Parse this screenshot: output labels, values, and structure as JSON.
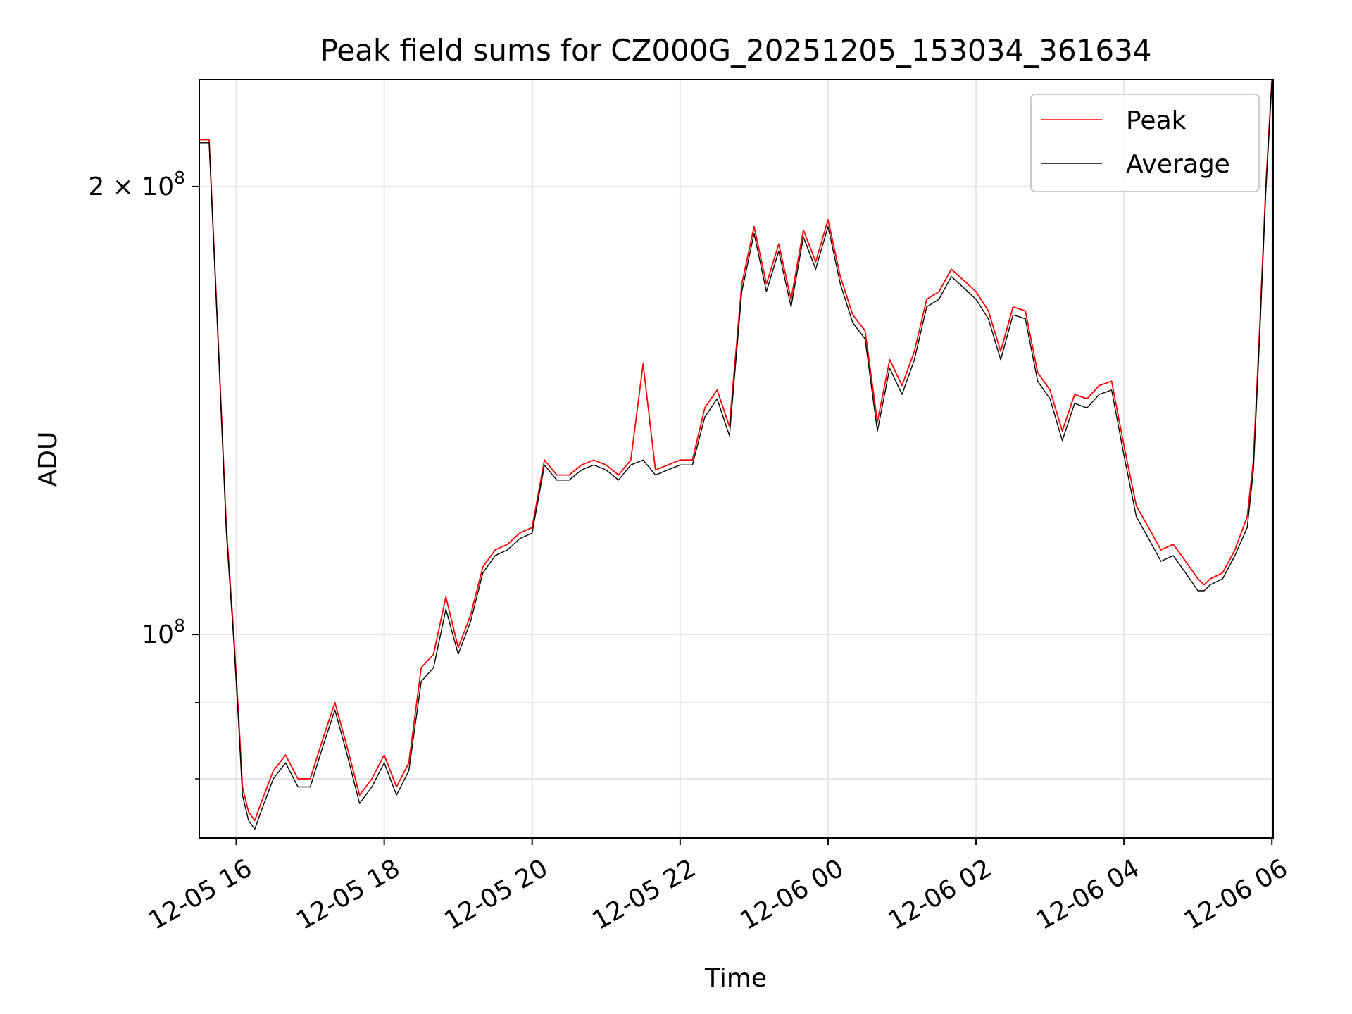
{
  "chart_data": {
    "type": "line",
    "title": "Peak field sums for CZ000G_20251205_153034_361634",
    "xlabel": "Time",
    "ylabel": "ADU",
    "yscale": "log",
    "xlim": [
      "2025-12-05 15:30",
      "2025-12-06 06:01"
    ],
    "ylim": [
      73000000,
      236000000
    ],
    "grid": true,
    "legend_position": "upper right",
    "x_ticks": [
      "2025-12-05 16:00",
      "2025-12-05 18:00",
      "2025-12-05 20:00",
      "2025-12-05 22:00",
      "2025-12-06 00:00",
      "2025-12-06 02:00",
      "2025-12-06 04:00",
      "2025-12-06 06:00"
    ],
    "x_tick_labels": [
      "12-05 16",
      "12-05 18",
      "12-05 20",
      "12-05 22",
      "12-06 00",
      "12-06 02",
      "12-06 04",
      "12-06 06"
    ],
    "y_tick_labels": [
      {
        "value": 100000000,
        "base": "10",
        "exp": "8",
        "prefix": ""
      },
      {
        "value": 200000000,
        "base": "10",
        "exp": "8",
        "prefix": "2 × "
      }
    ],
    "y_minor_ticks": [
      80000000,
      90000000
    ],
    "series": [
      {
        "name": "Peak",
        "color": "#ff0000",
        "x": [
          "2025-12-05 15:30",
          "2025-12-05 15:38",
          "2025-12-05 15:45",
          "2025-12-05 15:52",
          "2025-12-05 15:58",
          "2025-12-05 16:02",
          "2025-12-05 16:05",
          "2025-12-05 16:10",
          "2025-12-05 16:15",
          "2025-12-05 16:20",
          "2025-12-05 16:30",
          "2025-12-05 16:40",
          "2025-12-05 16:50",
          "2025-12-05 17:00",
          "2025-12-05 17:10",
          "2025-12-05 17:20",
          "2025-12-05 17:30",
          "2025-12-05 17:40",
          "2025-12-05 17:50",
          "2025-12-05 18:00",
          "2025-12-05 18:10",
          "2025-12-05 18:20",
          "2025-12-05 18:30",
          "2025-12-05 18:40",
          "2025-12-05 18:50",
          "2025-12-05 19:00",
          "2025-12-05 19:10",
          "2025-12-05 19:20",
          "2025-12-05 19:30",
          "2025-12-05 19:40",
          "2025-12-05 19:50",
          "2025-12-05 20:00",
          "2025-12-05 20:10",
          "2025-12-05 20:20",
          "2025-12-05 20:30",
          "2025-12-05 20:40",
          "2025-12-05 20:50",
          "2025-12-05 21:00",
          "2025-12-05 21:10",
          "2025-12-05 21:20",
          "2025-12-05 21:30",
          "2025-12-05 21:40",
          "2025-12-05 21:50",
          "2025-12-05 22:00",
          "2025-12-05 22:10",
          "2025-12-05 22:20",
          "2025-12-05 22:30",
          "2025-12-05 22:40",
          "2025-12-05 22:50",
          "2025-12-05 23:00",
          "2025-12-05 23:10",
          "2025-12-05 23:20",
          "2025-12-05 23:30",
          "2025-12-05 23:40",
          "2025-12-05 23:50",
          "2025-12-06 00:00",
          "2025-12-06 00:10",
          "2025-12-06 00:20",
          "2025-12-06 00:30",
          "2025-12-06 00:40",
          "2025-12-06 00:50",
          "2025-12-06 01:00",
          "2025-12-06 01:10",
          "2025-12-06 01:20",
          "2025-12-06 01:30",
          "2025-12-06 01:40",
          "2025-12-06 01:50",
          "2025-12-06 02:00",
          "2025-12-06 02:10",
          "2025-12-06 02:20",
          "2025-12-06 02:30",
          "2025-12-06 02:40",
          "2025-12-06 02:50",
          "2025-12-06 03:00",
          "2025-12-06 03:10",
          "2025-12-06 03:20",
          "2025-12-06 03:30",
          "2025-12-06 03:40",
          "2025-12-06 03:50",
          "2025-12-06 04:00",
          "2025-12-06 04:10",
          "2025-12-06 04:20",
          "2025-12-06 04:30",
          "2025-12-06 04:40",
          "2025-12-06 04:50",
          "2025-12-06 05:00",
          "2025-12-06 05:05",
          "2025-12-06 05:10",
          "2025-12-06 05:20",
          "2025-12-06 05:30",
          "2025-12-06 05:40",
          "2025-12-06 05:45",
          "2025-12-06 05:50",
          "2025-12-06 05:55",
          "2025-12-06 06:00"
        ],
        "values": [
          215000000,
          215000000,
          160000000,
          118000000,
          100000000,
          88000000,
          79000000,
          76000000,
          75000000,
          77000000,
          81000000,
          83000000,
          80000000,
          80000000,
          85000000,
          90000000,
          84000000,
          78000000,
          80000000,
          83000000,
          79000000,
          82000000,
          95000000,
          97000000,
          106000000,
          98000000,
          103000000,
          111000000,
          114000000,
          115000000,
          117000000,
          118000000,
          131000000,
          128000000,
          128000000,
          130000000,
          131000000,
          130000000,
          128000000,
          131000000,
          152000000,
          129000000,
          130000000,
          131000000,
          131000000,
          142000000,
          146000000,
          138000000,
          172000000,
          188000000,
          172000000,
          183000000,
          168000000,
          187000000,
          178000000,
          190000000,
          174000000,
          164000000,
          160000000,
          139000000,
          153000000,
          147000000,
          155000000,
          168000000,
          170000000,
          176000000,
          173000000,
          170000000,
          165000000,
          155000000,
          166000000,
          165000000,
          150000000,
          146000000,
          137000000,
          145000000,
          144000000,
          147000000,
          148000000,
          134000000,
          122000000,
          118000000,
          114000000,
          115000000,
          112000000,
          109000000,
          108000000,
          109000000,
          110000000,
          114000000,
          120000000,
          131000000,
          160000000,
          200000000,
          236000000
        ]
      },
      {
        "name": "Average",
        "color": "#000000",
        "x": [
          "2025-12-05 15:30",
          "2025-12-05 15:38",
          "2025-12-05 15:45",
          "2025-12-05 15:52",
          "2025-12-05 15:58",
          "2025-12-05 16:02",
          "2025-12-05 16:05",
          "2025-12-05 16:10",
          "2025-12-05 16:15",
          "2025-12-05 16:20",
          "2025-12-05 16:30",
          "2025-12-05 16:40",
          "2025-12-05 16:50",
          "2025-12-05 17:00",
          "2025-12-05 17:10",
          "2025-12-05 17:20",
          "2025-12-05 17:30",
          "2025-12-05 17:40",
          "2025-12-05 17:50",
          "2025-12-05 18:00",
          "2025-12-05 18:10",
          "2025-12-05 18:20",
          "2025-12-05 18:30",
          "2025-12-05 18:40",
          "2025-12-05 18:50",
          "2025-12-05 19:00",
          "2025-12-05 19:10",
          "2025-12-05 19:20",
          "2025-12-05 19:30",
          "2025-12-05 19:40",
          "2025-12-05 19:50",
          "2025-12-05 20:00",
          "2025-12-05 20:10",
          "2025-12-05 20:20",
          "2025-12-05 20:30",
          "2025-12-05 20:40",
          "2025-12-05 20:50",
          "2025-12-05 21:00",
          "2025-12-05 21:10",
          "2025-12-05 21:20",
          "2025-12-05 21:30",
          "2025-12-05 21:40",
          "2025-12-05 21:50",
          "2025-12-05 22:00",
          "2025-12-05 22:10",
          "2025-12-05 22:20",
          "2025-12-05 22:30",
          "2025-12-05 22:40",
          "2025-12-05 22:50",
          "2025-12-05 23:00",
          "2025-12-05 23:10",
          "2025-12-05 23:20",
          "2025-12-05 23:30",
          "2025-12-05 23:40",
          "2025-12-05 23:50",
          "2025-12-06 00:00",
          "2025-12-06 00:10",
          "2025-12-06 00:20",
          "2025-12-06 00:30",
          "2025-12-06 00:40",
          "2025-12-06 00:50",
          "2025-12-06 01:00",
          "2025-12-06 01:10",
          "2025-12-06 01:20",
          "2025-12-06 01:30",
          "2025-12-06 01:40",
          "2025-12-06 01:50",
          "2025-12-06 02:00",
          "2025-12-06 02:10",
          "2025-12-06 02:20",
          "2025-12-06 02:30",
          "2025-12-06 02:40",
          "2025-12-06 02:50",
          "2025-12-06 03:00",
          "2025-12-06 03:10",
          "2025-12-06 03:20",
          "2025-12-06 03:30",
          "2025-12-06 03:40",
          "2025-12-06 03:50",
          "2025-12-06 04:00",
          "2025-12-06 04:10",
          "2025-12-06 04:20",
          "2025-12-06 04:30",
          "2025-12-06 04:40",
          "2025-12-06 04:50",
          "2025-12-06 05:00",
          "2025-12-06 05:05",
          "2025-12-06 05:10",
          "2025-12-06 05:20",
          "2025-12-06 05:30",
          "2025-12-06 05:40",
          "2025-12-06 05:45",
          "2025-12-06 05:50",
          "2025-12-06 05:55",
          "2025-12-06 06:00"
        ],
        "values": [
          214000000,
          214000000,
          159000000,
          117000000,
          99000000,
          87000000,
          78000000,
          75000000,
          74000000,
          76000000,
          80000000,
          82000000,
          79000000,
          79000000,
          84000000,
          89000000,
          83000000,
          77000000,
          79000000,
          82000000,
          78000000,
          81000000,
          93000000,
          95000000,
          104000000,
          97000000,
          102000000,
          110000000,
          113000000,
          114000000,
          116000000,
          117000000,
          130000000,
          127000000,
          127000000,
          129000000,
          130000000,
          129000000,
          127000000,
          130000000,
          131000000,
          128000000,
          129000000,
          130000000,
          130000000,
          140000000,
          144000000,
          136000000,
          170000000,
          186000000,
          170000000,
          181000000,
          166000000,
          185000000,
          176000000,
          188000000,
          172000000,
          162000000,
          158000000,
          137000000,
          151000000,
          145000000,
          153000000,
          166000000,
          168000000,
          174000000,
          171000000,
          168000000,
          163000000,
          153000000,
          164000000,
          163000000,
          148000000,
          144000000,
          135000000,
          143000000,
          142000000,
          145000000,
          146000000,
          132000000,
          120000000,
          116000000,
          112000000,
          113000000,
          110000000,
          107000000,
          107000000,
          108000000,
          109000000,
          113000000,
          118000000,
          129000000,
          158000000,
          198000000,
          235000000
        ]
      }
    ]
  }
}
